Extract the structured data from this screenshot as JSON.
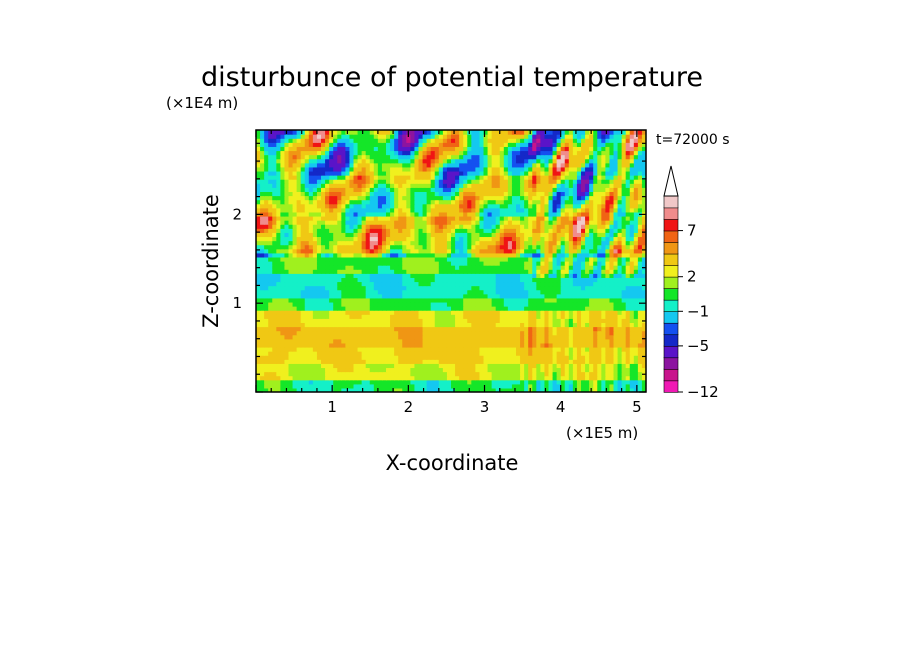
{
  "chart_data": {
    "type": "heatmap",
    "title": "disturbunce of potential temperature",
    "xlabel": "X-coordinate",
    "ylabel": "Z-coordinate",
    "x_unit": "(×1E5 m)",
    "y_unit": "(×1E4 m)",
    "time_label": "t=72000 s",
    "x_ticks": [
      "1",
      "2",
      "3",
      "4",
      "5"
    ],
    "y_ticks": [
      "1",
      "2"
    ],
    "xlim": [
      0,
      5.12
    ],
    "ylim": [
      0,
      2.95
    ],
    "colorbar": {
      "levels": [
        -12,
        -10,
        -8,
        -7,
        -5,
        -4,
        -3,
        -1,
        0,
        1,
        2,
        3,
        5,
        6,
        7,
        8,
        9
      ],
      "colors": [
        "#f019b4",
        "#c8148c",
        "#8c14a0",
        "#5a14c8",
        "#1428c8",
        "#1450f0",
        "#14c8f0",
        "#14f0c8",
        "#14e628",
        "#a0f01e",
        "#f0f01e",
        "#f0c814",
        "#f09614",
        "#f06414",
        "#f01414",
        "#f08c8c",
        "#f0c8c8"
      ],
      "tick_labels": [
        "7",
        "2",
        "-1",
        "-5",
        "-12"
      ]
    },
    "bands": [
      {
        "z": [
          0.0,
          0.12
        ],
        "base": 0.0
      },
      {
        "z": [
          0.12,
          0.3
        ],
        "base": 2.2
      },
      {
        "z": [
          0.3,
          0.5
        ],
        "base": 3.2
      },
      {
        "z": [
          0.5,
          0.72
        ],
        "base": 4.4
      },
      {
        "z": [
          0.72,
          0.9
        ],
        "base": 2.8
      },
      {
        "z": [
          0.9,
          1.05
        ],
        "base": 0.6
      },
      {
        "z": [
          1.05,
          1.35
        ],
        "base": -0.6
      },
      {
        "z": [
          1.35,
          1.55
        ],
        "base": 0.8
      },
      {
        "z": [
          1.55,
          2.0
        ],
        "base": 3.0
      },
      {
        "z": [
          2.0,
          2.45
        ],
        "base": 1.5
      },
      {
        "z": [
          2.45,
          2.95
        ],
        "base": 0.5
      }
    ]
  }
}
